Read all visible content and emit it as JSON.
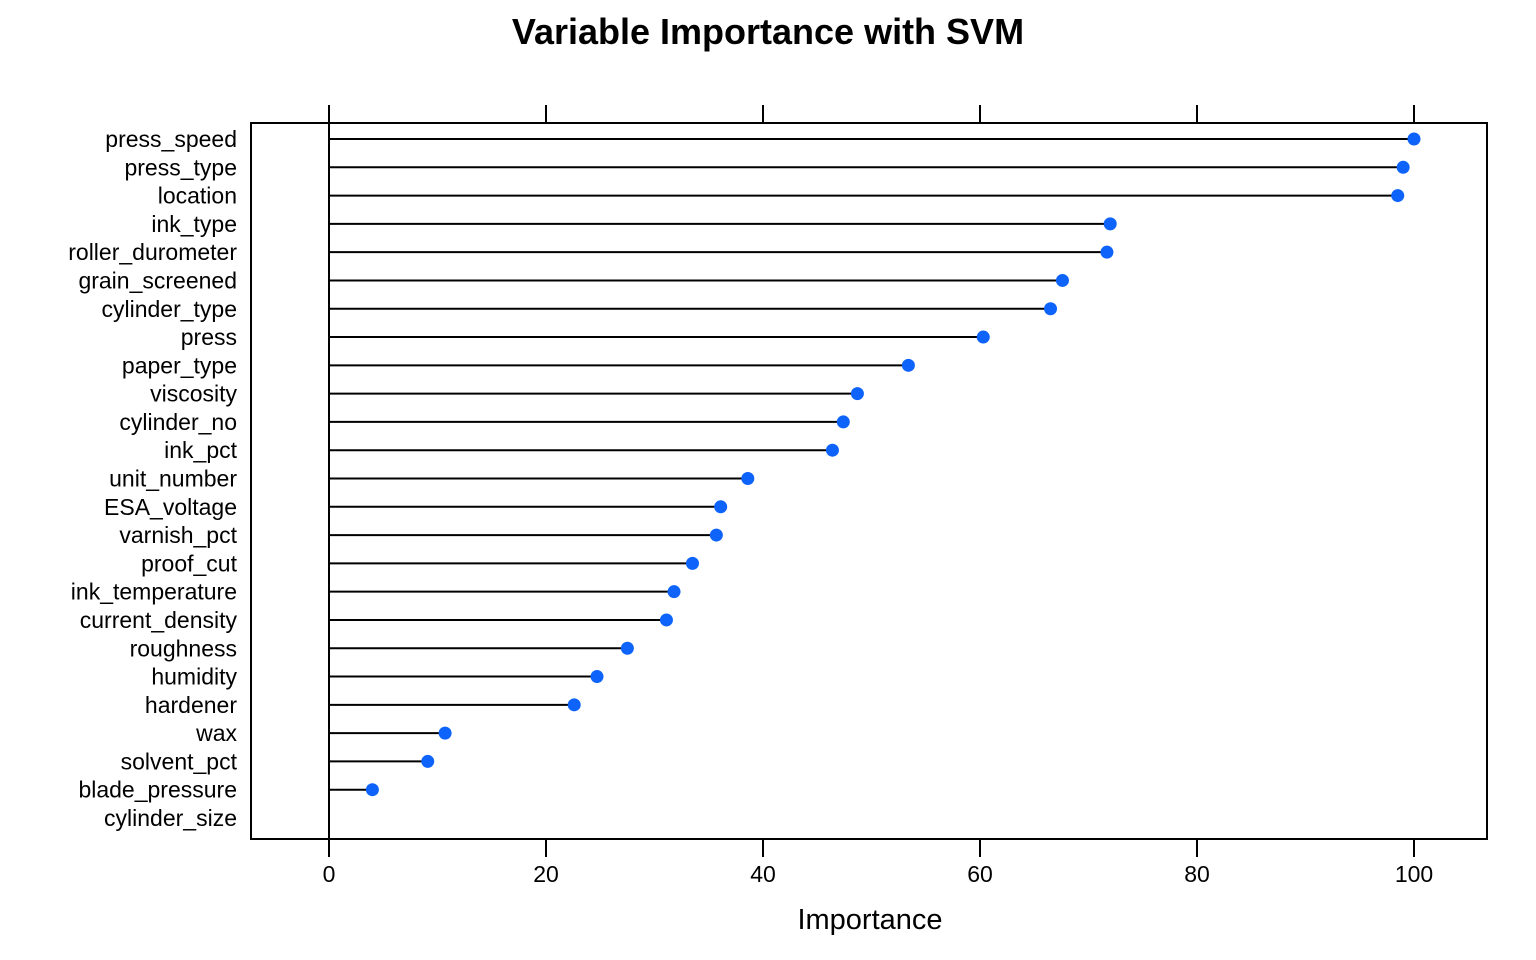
{
  "chart_data": {
    "type": "dot",
    "title": "Variable Importance with SVM",
    "xlabel": "Importance",
    "ylabel": "",
    "xlim": [
      -7,
      107
    ],
    "xticks": [
      0,
      20,
      40,
      60,
      80,
      100
    ],
    "grid": false,
    "colors": {
      "point": "#0d63fa",
      "line": "#000000",
      "frame": "#000000"
    },
    "series": [
      {
        "values": [
          100,
          99,
          98.5,
          72,
          71.7,
          67.6,
          66.5,
          60.3,
          53.4,
          48.7,
          47.4,
          46.4,
          38.6,
          36.1,
          35.7,
          33.5,
          31.8,
          31.1,
          27.5,
          24.7,
          22.6,
          10.7,
          9.1,
          4,
          0
        ]
      }
    ],
    "categories": [
      "press_speed",
      "press_type",
      "location",
      "ink_type",
      "roller_durometer",
      "grain_screened",
      "cylinder_type",
      "press",
      "paper_type",
      "viscosity",
      "cylinder_no",
      "ink_pct",
      "unit_number",
      "ESA_voltage",
      "varnish_pct",
      "proof_cut",
      "ink_temperature",
      "current_density",
      "roughness",
      "humidity",
      "hardener",
      "wax",
      "solvent_pct",
      "blade_pressure",
      "cylinder_size"
    ]
  }
}
